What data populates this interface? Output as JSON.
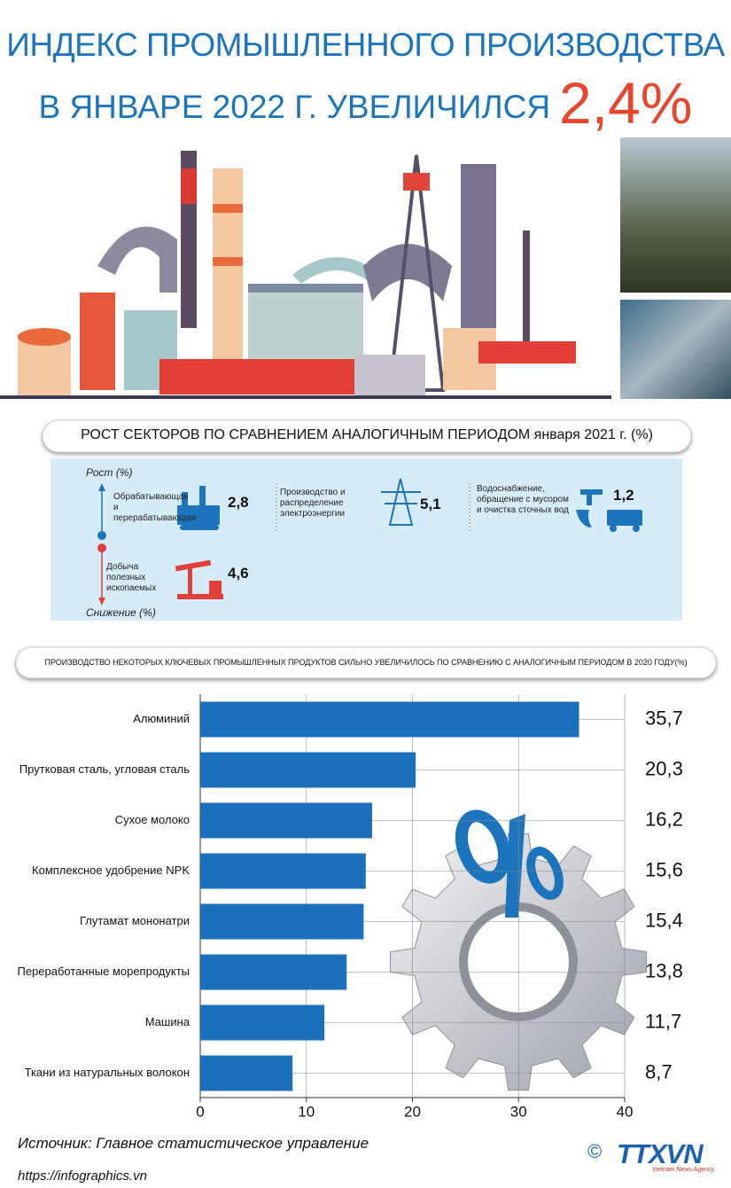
{
  "header": {
    "title_line1": "ИНДЕКС ПРОМЫШЛЕННОГО ПРОИЗВОДСТВА",
    "title_line2": "В ЯНВАРЕ 2022 Г. УВЕЛИЧИЛСЯ",
    "headline_value": "2,4%"
  },
  "sectors": {
    "title": "РОСТ СЕКТОРОВ ПО СРАВНЕНИЕМ АНАЛОГИЧНЫМ ПЕРИОДОМ  января 2021 г. (%)",
    "growth_label": "Рост (%)",
    "decline_label": "Снижение (%)",
    "items": [
      {
        "name": "Обрабатывающая и перерабатывающая",
        "value": "2,8"
      },
      {
        "name": "Производство и распределение электроэнергии",
        "value": "5,1"
      },
      {
        "name": "Водоснабжение, обращение с мусором и очистка сточных вод",
        "value": "1,2"
      },
      {
        "name": "Добыча полезных ископаемых",
        "value": "4,6"
      }
    ]
  },
  "chart_data": {
    "type": "hbar",
    "title": "ПРОИЗВОДСТВО НЕКОТОРЫХ КЛЮЧЕВЫХ ПРОМЫШЛЕННЫХ ПРОДУКТОВ СИЛЬНО УВЕЛИЧИЛОСЬ ПО СРАВНЕНИЮ С АНАЛОГИЧНЫМ ПЕРИОДОМ В 2020 ГОДУ(%)",
    "categories": [
      "Алюминий",
      "Прутковая сталь, угловая сталь",
      "Сухое молоко",
      "Комплексное удобрение NPK",
      "Глутамат мононатри",
      "Переработанные морепродукты",
      "Машина",
      "Ткани из натуральных волокон"
    ],
    "values": [
      35.7,
      20.3,
      16.2,
      15.6,
      15.4,
      13.8,
      11.7,
      8.7
    ],
    "value_labels": [
      "35,7",
      "20,3",
      "16,2",
      "15,6",
      "15,4",
      "13,8",
      "11,7",
      "8,7"
    ],
    "color": "#1b6fbb",
    "xlim": [
      0,
      40
    ],
    "xticks": [
      0,
      10,
      20,
      30,
      40
    ],
    "grid": true
  },
  "footer": {
    "source": "Источник: Главное статистическое управление",
    "url": "https://infographics.vn",
    "copyright": "©",
    "logo": "TTXVN",
    "agency": "Vietnam News Agency"
  }
}
